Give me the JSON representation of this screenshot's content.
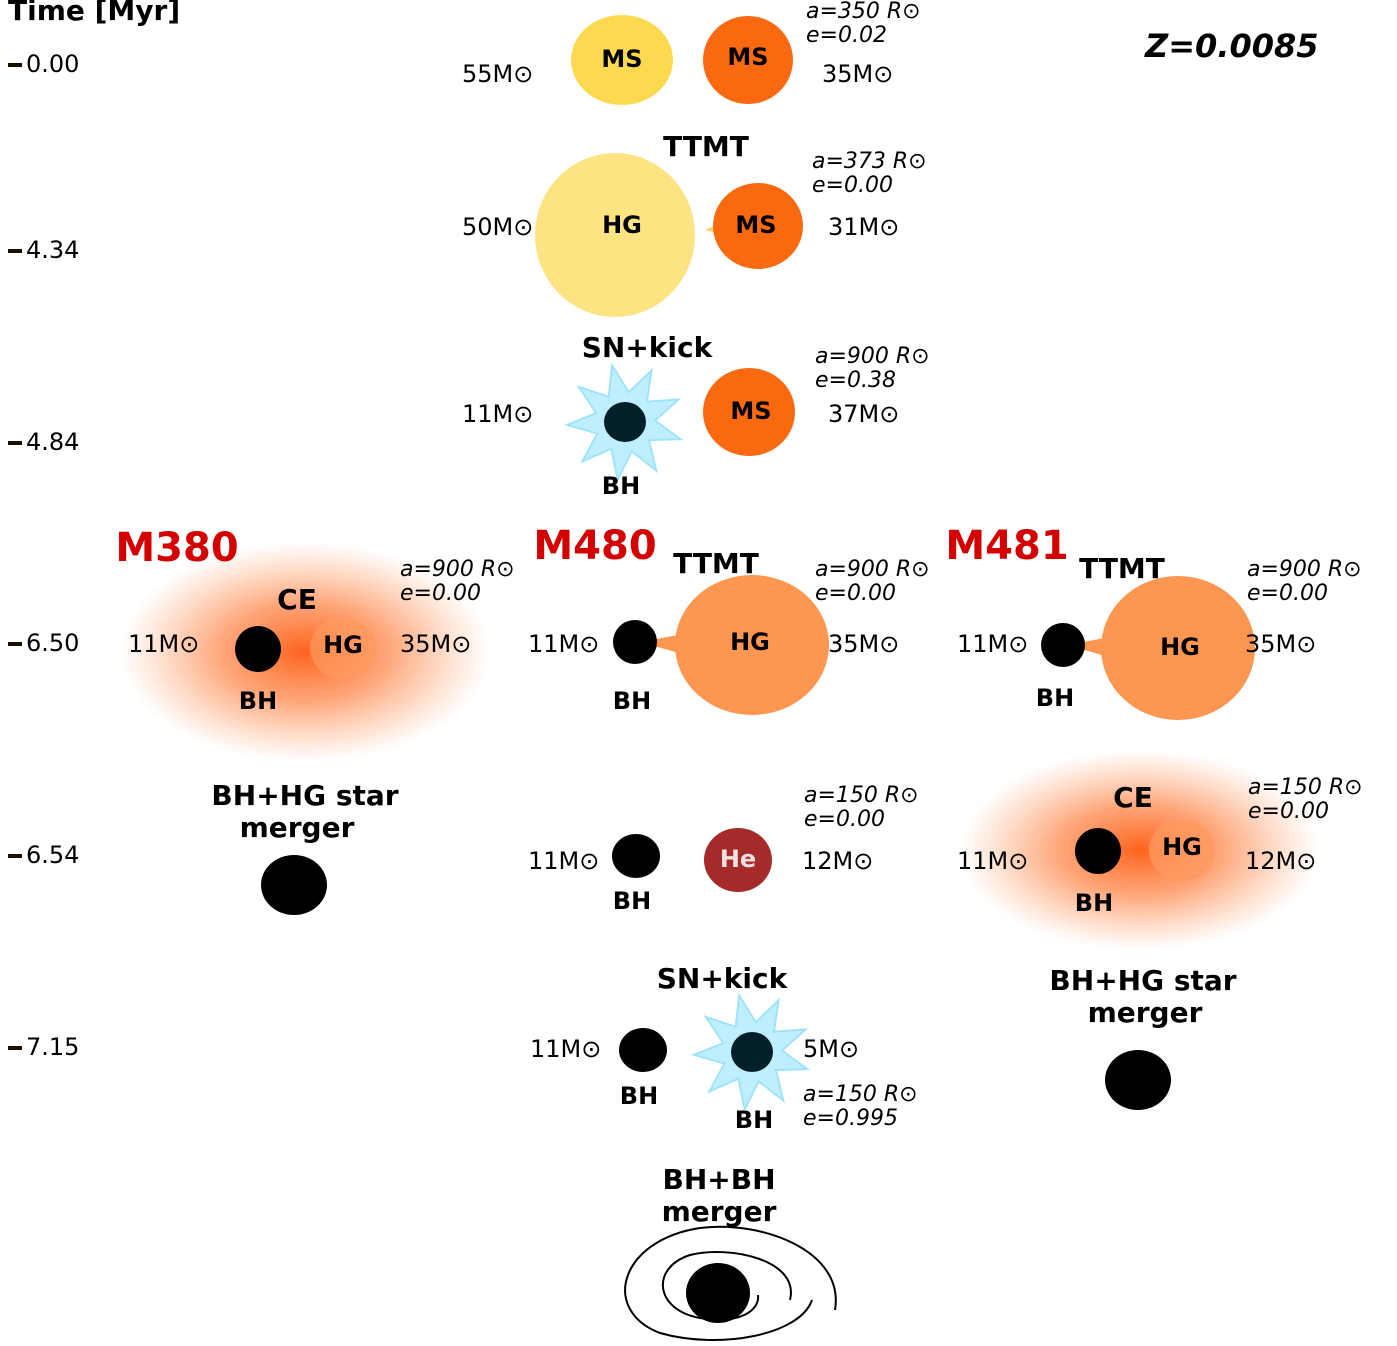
{
  "time_axis": {
    "title": "Time [Myr]",
    "ticks": [
      "0.00",
      "4.34",
      "4.84",
      "6.50",
      "6.54",
      "7.15"
    ]
  },
  "metallicity": "Z=0.0085",
  "stages": [
    {
      "star1": "MS",
      "star2": "MS",
      "mass1": "55M⊙",
      "mass2": "35M⊙",
      "separation": "a=350 R⊙",
      "eccentricity": "e=0.02"
    },
    {
      "event": "TTMT",
      "star1": "HG",
      "star2": "MS",
      "mass1": "50M⊙",
      "mass2": "31M⊙",
      "separation": "a=373 R⊙",
      "eccentricity": "e=0.00"
    },
    {
      "event": "SN+kick",
      "star1": "BH",
      "star2": "MS",
      "mass1": "11M⊙",
      "mass2": "37M⊙",
      "separation": "a=900 R⊙",
      "eccentricity": "e=0.38"
    }
  ],
  "m380": {
    "name": "M380",
    "ce": {
      "event": "CE",
      "star1": "BH",
      "star2": "HG",
      "mass1": "11M⊙",
      "mass2": "35M⊙",
      "separation": "a=900 R⊙",
      "eccentricity": "e=0.00"
    },
    "merger": [
      "BH+HG star",
      "merger"
    ]
  },
  "m480": {
    "name": "M480",
    "ttmt": {
      "event": "TTMT",
      "star1": "BH",
      "star2": "HG",
      "mass1": "11M⊙",
      "mass2": "35M⊙",
      "separation": "a=900 R⊙",
      "eccentricity": "e=0.00"
    },
    "he": {
      "star1": "BH",
      "star2": "He",
      "mass1": "11M⊙",
      "mass2": "12M⊙",
      "separation": "a=150 R⊙",
      "eccentricity": "e=0.00"
    },
    "sn": {
      "event": "SN+kick",
      "star1": "BH",
      "star2": "BH",
      "mass1": "11M⊙",
      "mass2": "5M⊙",
      "separation": "a=150 R⊙",
      "eccentricity": "e=0.995"
    },
    "merger": [
      "BH+BH",
      "merger"
    ]
  },
  "m481": {
    "name": "M481",
    "ttmt": {
      "event": "TTMT",
      "star1": "BH",
      "star2": "HG",
      "mass1": "11M⊙",
      "mass2": "35M⊙",
      "separation": "a=900 R⊙",
      "eccentricity": "e=0.00"
    },
    "ce": {
      "event": "CE",
      "star1": "BH",
      "star2": "HG",
      "mass1": "11M⊙",
      "mass2": "12M⊙",
      "separation": "a=150 R⊙",
      "eccentricity": "e=0.00"
    },
    "merger": [
      "BH+HG star",
      "merger"
    ]
  }
}
